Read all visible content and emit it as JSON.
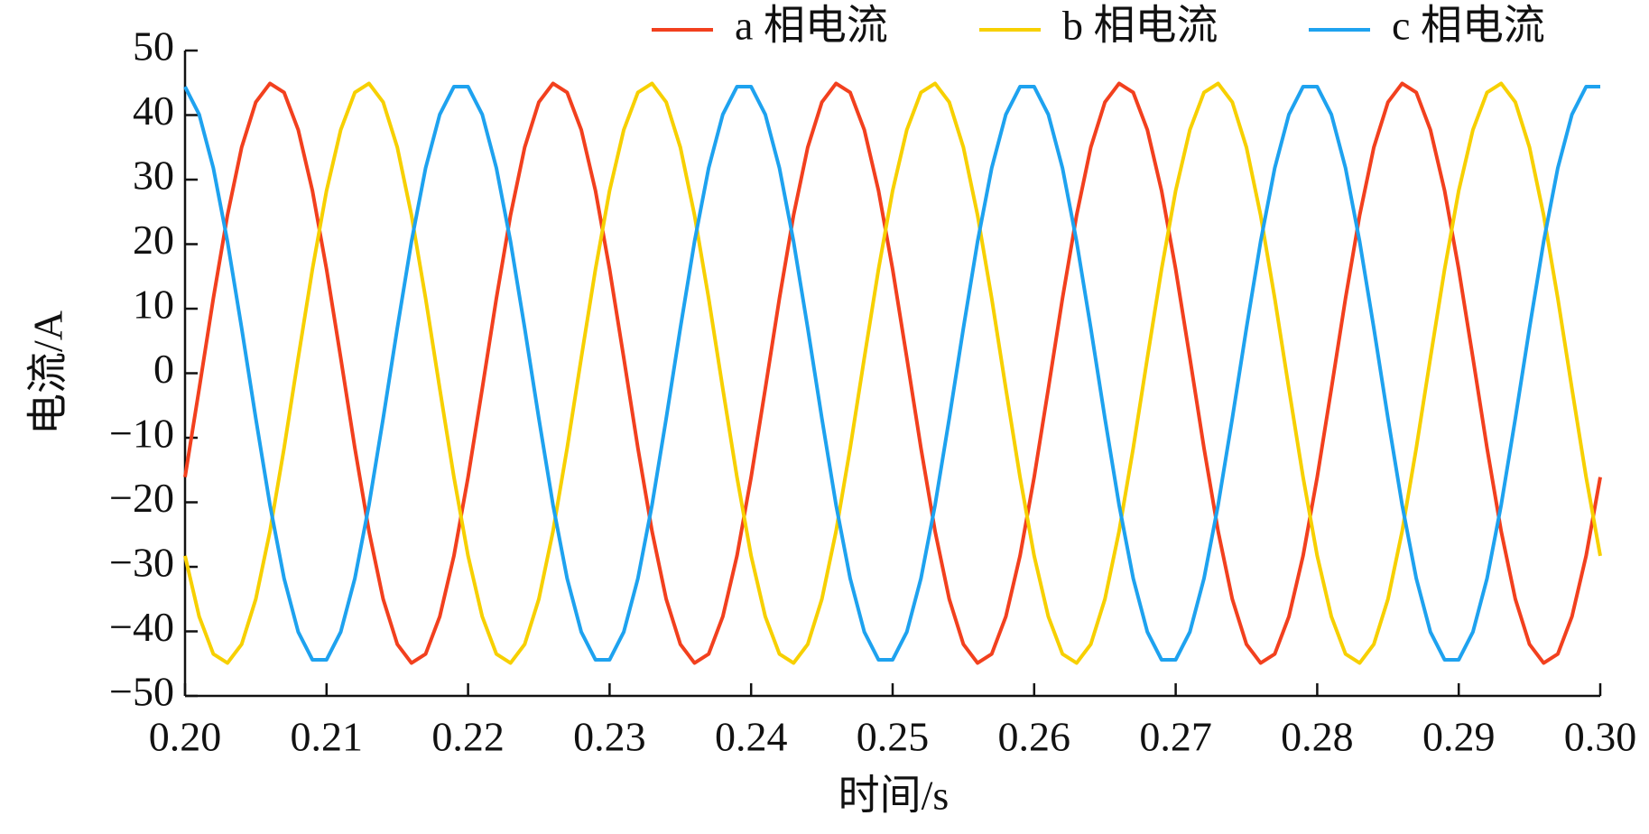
{
  "chart_data": {
    "type": "line",
    "xlabel": "时间/s",
    "ylabel": "电流/A",
    "x": [
      0.2,
      0.201,
      0.202,
      0.203,
      0.204,
      0.205,
      0.206,
      0.207,
      0.208,
      0.209,
      0.21,
      0.211,
      0.212,
      0.213,
      0.214,
      0.215,
      0.216,
      0.217,
      0.218,
      0.219,
      0.22,
      0.221,
      0.222,
      0.223,
      0.224,
      0.225,
      0.226,
      0.227,
      0.228,
      0.229,
      0.23,
      0.231,
      0.232,
      0.233,
      0.234,
      0.235,
      0.236,
      0.237,
      0.238,
      0.239,
      0.24,
      0.241,
      0.242,
      0.243,
      0.244,
      0.245,
      0.246,
      0.247,
      0.248,
      0.249,
      0.25,
      0.251,
      0.252,
      0.253,
      0.254,
      0.255,
      0.256,
      0.257,
      0.258,
      0.259,
      0.26,
      0.261,
      0.262,
      0.263,
      0.264,
      0.265,
      0.266,
      0.267,
      0.268,
      0.269,
      0.27,
      0.271,
      0.272,
      0.273,
      0.274,
      0.275,
      0.276,
      0.277,
      0.278,
      0.279,
      0.28,
      0.281,
      0.282,
      0.283,
      0.284,
      0.285,
      0.286,
      0.287,
      0.288,
      0.289,
      0.29,
      0.291,
      0.292,
      0.293,
      0.294,
      0.295,
      0.296,
      0.297,
      0.298,
      0.299,
      0.3
    ],
    "series": [
      {
        "name": "a 相电流",
        "color": "#f2401e",
        "values": [
          -16.1,
          -2.4,
          11.6,
          24.5,
          35.0,
          42.0,
          44.9,
          43.5,
          37.7,
          28.3,
          16.1,
          2.4,
          -11.6,
          -24.5,
          -35.0,
          -42.0,
          -44.9,
          -43.5,
          -37.7,
          -28.3,
          -16.1,
          -2.4,
          11.6,
          24.5,
          35.0,
          42.0,
          44.9,
          43.5,
          37.7,
          28.3,
          16.1,
          2.4,
          -11.6,
          -24.5,
          -35.0,
          -42.0,
          -44.9,
          -43.5,
          -37.7,
          -28.3,
          -16.1,
          -2.4,
          11.6,
          24.5,
          35.0,
          42.0,
          44.9,
          43.5,
          37.7,
          28.3,
          16.1,
          2.4,
          -11.6,
          -24.5,
          -35.0,
          -42.0,
          -44.9,
          -43.5,
          -37.7,
          -28.3,
          -16.1,
          -2.4,
          11.6,
          24.5,
          35.0,
          42.0,
          44.9,
          43.5,
          37.7,
          28.3,
          16.1,
          2.4,
          -11.6,
          -24.5,
          -35.0,
          -42.0,
          -44.9,
          -43.5,
          -37.7,
          -28.3,
          -16.1,
          -2.4,
          11.6,
          24.5,
          35.0,
          42.0,
          44.9,
          43.5,
          37.7,
          28.3,
          16.1,
          2.4,
          -11.6,
          -24.5,
          -35.0,
          -42.0,
          -44.9,
          -43.5,
          -37.7,
          -28.3,
          -16.1
        ]
      },
      {
        "name": "b 相电流",
        "color": "#f7d000",
        "values": [
          -28.3,
          -37.7,
          -43.5,
          -44.9,
          -42.0,
          -35.0,
          -24.5,
          -11.6,
          2.4,
          16.1,
          28.3,
          37.7,
          43.5,
          44.9,
          42.0,
          35.0,
          24.5,
          11.6,
          -2.4,
          -16.1,
          -28.3,
          -37.7,
          -43.5,
          -44.9,
          -42.0,
          -35.0,
          -24.5,
          -11.6,
          2.4,
          16.1,
          28.3,
          37.7,
          43.5,
          44.9,
          42.0,
          35.0,
          24.5,
          11.6,
          -2.4,
          -16.1,
          -28.3,
          -37.7,
          -43.5,
          -44.9,
          -42.0,
          -35.0,
          -24.5,
          -11.6,
          2.4,
          16.1,
          28.3,
          37.7,
          43.5,
          44.9,
          42.0,
          35.0,
          24.5,
          11.6,
          -2.4,
          -16.1,
          -28.3,
          -37.7,
          -43.5,
          -44.9,
          -42.0,
          -35.0,
          -24.5,
          -11.6,
          2.4,
          16.1,
          28.3,
          37.7,
          43.5,
          44.9,
          42.0,
          35.0,
          24.5,
          11.6,
          -2.4,
          -16.1,
          -28.3,
          -37.7,
          -43.5,
          -44.9,
          -42.0,
          -35.0,
          -24.5,
          -11.6,
          2.4,
          16.1,
          28.3,
          37.7,
          43.5,
          44.9,
          42.0,
          35.0,
          24.5,
          11.6,
          -2.4,
          -16.1,
          -28.3
        ]
      },
      {
        "name": "c 相电流",
        "color": "#1ea2ef",
        "values": [
          44.4,
          40.1,
          31.8,
          20.4,
          7.0,
          -7.0,
          -20.4,
          -31.8,
          -40.1,
          -44.4,
          -44.4,
          -40.1,
          -31.8,
          -20.4,
          -7.0,
          7.0,
          20.4,
          31.8,
          40.1,
          44.4,
          44.4,
          40.1,
          31.8,
          20.4,
          7.0,
          -7.0,
          -20.4,
          -31.8,
          -40.1,
          -44.4,
          -44.4,
          -40.1,
          -31.8,
          -20.4,
          -7.0,
          7.0,
          20.4,
          31.8,
          40.1,
          44.4,
          44.4,
          40.1,
          31.8,
          20.4,
          7.0,
          -7.0,
          -20.4,
          -31.8,
          -40.1,
          -44.4,
          -44.4,
          -40.1,
          -31.8,
          -20.4,
          -7.0,
          7.0,
          20.4,
          31.8,
          40.1,
          44.4,
          44.4,
          40.1,
          31.8,
          20.4,
          7.0,
          -7.0,
          -20.4,
          -31.8,
          -40.1,
          -44.4,
          -44.4,
          -40.1,
          -31.8,
          -20.4,
          -7.0,
          7.0,
          20.4,
          31.8,
          40.1,
          44.4,
          44.4,
          40.1,
          31.8,
          20.4,
          7.0,
          -7.0,
          -20.4,
          -31.8,
          -40.1,
          -44.4,
          -44.4,
          -40.1,
          -31.8,
          -20.4,
          -7.0,
          7.0,
          20.4,
          31.8,
          40.1,
          44.4,
          44.4
        ]
      }
    ],
    "xlim": [
      0.2,
      0.3
    ],
    "xticks": [
      {
        "value": 0.2,
        "label": "0.20"
      },
      0.21,
      0.22,
      0.23,
      0.24,
      0.25,
      0.26,
      0.27,
      0.28,
      0.29,
      {
        "value": 0.3,
        "label": "0.30"
      }
    ],
    "ylim": [
      -50,
      50
    ],
    "yticks": [
      {
        "value": -50,
        "label": "−50"
      },
      {
        "value": -40,
        "label": "−40"
      },
      {
        "value": -30,
        "label": "−30"
      },
      {
        "value": -20,
        "label": "−20"
      },
      {
        "value": -10,
        "label": "−10"
      },
      0,
      10,
      20,
      30,
      40,
      50
    ],
    "grid": false,
    "legend": "top-right"
  }
}
